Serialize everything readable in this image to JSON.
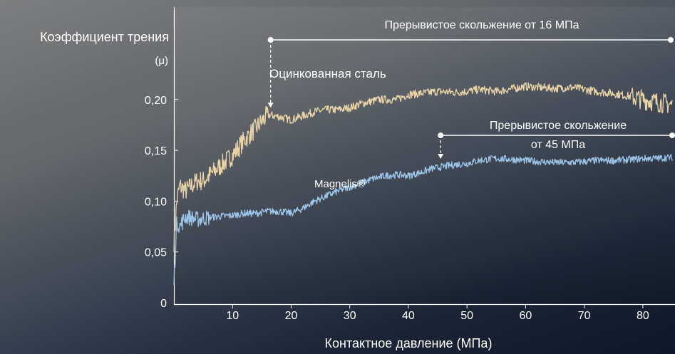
{
  "chart_data": {
    "type": "line",
    "ylabel_line1": "Коэффициент трения",
    "ylabel_line2": "(μ)",
    "xlabel": "Контактное давление (МПа)",
    "xlim": [
      0,
      85
    ],
    "ylim": [
      0,
      0.23
    ],
    "y_ticks": [
      {
        "value": 0,
        "label": "0"
      },
      {
        "value": 0.05,
        "label": "0,05"
      },
      {
        "value": 0.1,
        "label": "0,10"
      },
      {
        "value": 0.15,
        "label": "0,15"
      },
      {
        "value": 0.2,
        "label": "0,20"
      }
    ],
    "x_ticks": [
      {
        "value": 10,
        "label": "10"
      },
      {
        "value": 20,
        "label": "20"
      },
      {
        "value": 30,
        "label": "30"
      },
      {
        "value": 40,
        "label": "40"
      },
      {
        "value": 50,
        "label": "50"
      },
      {
        "value": 60,
        "label": "60"
      },
      {
        "value": 70,
        "label": "70"
      },
      {
        "value": 80,
        "label": "80"
      }
    ],
    "series": [
      {
        "name": "Оцинкованная сталь",
        "color": "#e8d2a6",
        "x": [
          0,
          0.5,
          1,
          2,
          3,
          4,
          5,
          6,
          8,
          10,
          12,
          14,
          16,
          18,
          20,
          22,
          24,
          26,
          28,
          30,
          32,
          35,
          38,
          40,
          42,
          45,
          48,
          50,
          52,
          55,
          58,
          60,
          62,
          65,
          68,
          70,
          72,
          75,
          78,
          80,
          82,
          85
        ],
        "y": [
          0.06,
          0.1,
          0.115,
          0.11,
          0.115,
          0.12,
          0.12,
          0.125,
          0.135,
          0.145,
          0.16,
          0.172,
          0.185,
          0.183,
          0.18,
          0.184,
          0.188,
          0.19,
          0.19,
          0.192,
          0.196,
          0.2,
          0.2,
          0.205,
          0.206,
          0.208,
          0.207,
          0.208,
          0.21,
          0.208,
          0.211,
          0.213,
          0.212,
          0.211,
          0.212,
          0.21,
          0.208,
          0.206,
          0.203,
          0.2,
          0.198,
          0.195
        ]
      },
      {
        "name": "Magnelis®",
        "color": "#9cc4e8",
        "x": [
          0,
          0.5,
          1,
          2,
          4,
          6,
          8,
          10,
          12,
          14,
          16,
          18,
          20,
          22,
          24,
          26,
          28,
          30,
          32,
          34,
          36,
          38,
          40,
          42,
          44,
          46,
          48,
          50,
          52,
          55,
          58,
          60,
          62,
          65,
          68,
          70,
          72,
          75,
          78,
          80,
          82,
          85
        ],
        "y": [
          0.02,
          0.08,
          0.075,
          0.085,
          0.082,
          0.084,
          0.085,
          0.086,
          0.088,
          0.088,
          0.09,
          0.09,
          0.088,
          0.093,
          0.1,
          0.105,
          0.11,
          0.114,
          0.118,
          0.122,
          0.125,
          0.126,
          0.125,
          0.128,
          0.132,
          0.134,
          0.136,
          0.137,
          0.14,
          0.142,
          0.141,
          0.14,
          0.139,
          0.138,
          0.138,
          0.139,
          0.14,
          0.14,
          0.141,
          0.142,
          0.142,
          0.143
        ]
      }
    ],
    "labels": {
      "galvanized": "Оцинкованная сталь",
      "magnelis": "Magnelis®"
    },
    "annotations": {
      "stick_slip_16": {
        "text": "Прерывистое скольжение от 16 МПа",
        "x_start": 16.5,
        "arrow_y": 0.185
      },
      "stick_slip_45_line1": "Прерывистое скольжение",
      "stick_slip_45_line2": "от 45 МПа",
      "stick_slip_45_x_start": 45.5,
      "stick_slip_45_arrow_y": 0.136
    }
  }
}
